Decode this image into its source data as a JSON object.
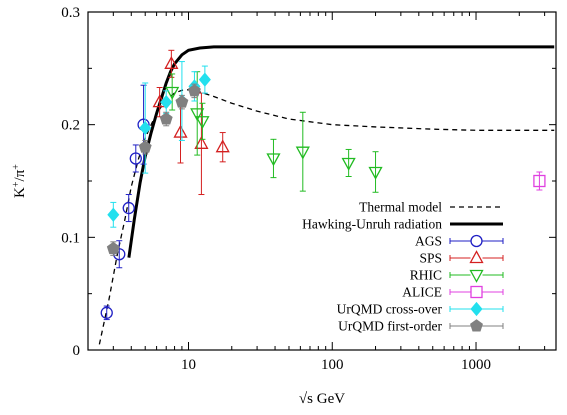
{
  "chart_data": {
    "type": "scatter",
    "xlabel": "√s GeV",
    "ylabel_base": "K",
    "ylabel_sup1": "+",
    "ylabel_mid": "/π",
    "ylabel_sup2": "+",
    "xscale": "log",
    "xlim": [
      2.0,
      3600
    ],
    "ylim": [
      0,
      0.3
    ],
    "xticks": [
      {
        "value": 10,
        "label": "10"
      },
      {
        "value": 100,
        "label": "100"
      },
      {
        "value": 1000,
        "label": "1000"
      }
    ],
    "yticks": [
      {
        "value": 0,
        "label": "0"
      },
      {
        "value": 0.1,
        "label": "0.1"
      },
      {
        "value": 0.2,
        "label": "0.2"
      },
      {
        "value": 0.3,
        "label": "0.3"
      }
    ],
    "grid": false,
    "legend_position": "bottom-right",
    "curves": [
      {
        "name": "Thermal model",
        "style": "dashed",
        "color": "#000000",
        "x": [
          2.4,
          2.8,
          3.2,
          3.6,
          4.0,
          4.5,
          5.0,
          5.5,
          6.0,
          7.0,
          8.0,
          9.0,
          10.0,
          12.0,
          15.0,
          20.0,
          30.0,
          50.0,
          100.0,
          200.0,
          500.0,
          1000.0,
          2000.0,
          3500.0
        ],
        "y": [
          0.005,
          0.045,
          0.085,
          0.115,
          0.145,
          0.17,
          0.188,
          0.2,
          0.21,
          0.222,
          0.228,
          0.2305,
          0.231,
          0.229,
          0.225,
          0.219,
          0.212,
          0.205,
          0.2,
          0.198,
          0.196,
          0.195,
          0.195,
          0.195
        ]
      },
      {
        "name": "Hawking-Unruh radiation",
        "style": "solid-thick",
        "color": "#000000",
        "x": [
          3.85,
          4.2,
          4.6,
          5.0,
          5.5,
          6.0,
          6.5,
          7.0,
          7.5,
          8.0,
          9.0,
          10.0,
          12.0,
          15.0,
          20.0,
          50.0,
          100.0,
          1000.0,
          3500.0
        ],
        "y": [
          0.082,
          0.116,
          0.148,
          0.172,
          0.193,
          0.21,
          0.224,
          0.237,
          0.247,
          0.254,
          0.262,
          0.266,
          0.268,
          0.269,
          0.269,
          0.269,
          0.269,
          0.269,
          0.269
        ]
      }
    ],
    "series": [
      {
        "name": "AGS",
        "color": "#1f1fc4",
        "marker": "circle-open",
        "points": [
          {
            "x": 2.7,
            "y": 0.033,
            "err": 0.006
          },
          {
            "x": 3.3,
            "y": 0.085,
            "err": 0.012
          },
          {
            "x": 3.84,
            "y": 0.126,
            "err": 0.012
          },
          {
            "x": 4.3,
            "y": 0.17,
            "err": 0.012
          },
          {
            "x": 4.87,
            "y": 0.2,
            "err": 0.035
          }
        ]
      },
      {
        "name": "SPS",
        "color": "#d42020",
        "marker": "triangle-up-open",
        "points": [
          {
            "x": 6.3,
            "y": 0.22,
            "err": 0.013
          },
          {
            "x": 7.6,
            "y": 0.254,
            "err": 0.012
          },
          {
            "x": 8.8,
            "y": 0.193,
            "err": 0.027
          },
          {
            "x": 12.3,
            "y": 0.183,
            "err": 0.045
          },
          {
            "x": 17.3,
            "y": 0.18,
            "err": 0.013
          }
        ]
      },
      {
        "name": "RHIC",
        "color": "#22bb22",
        "marker": "triangle-down-open",
        "points": [
          {
            "x": 7.7,
            "y": 0.229,
            "err": 0.016
          },
          {
            "x": 11.5,
            "y": 0.21,
            "err": 0.037
          },
          {
            "x": 12.5,
            "y": 0.203,
            "err": 0.016
          },
          {
            "x": 39,
            "y": 0.17,
            "err": 0.017
          },
          {
            "x": 62.4,
            "y": 0.176,
            "err": 0.035
          },
          {
            "x": 130,
            "y": 0.166,
            "err": 0.012
          },
          {
            "x": 200,
            "y": 0.158,
            "err": 0.018
          }
        ]
      },
      {
        "name": "ALICE",
        "color": "#e040e0",
        "marker": "square-open",
        "points": [
          {
            "x": 2760,
            "y": 0.15,
            "err": 0.008
          }
        ]
      },
      {
        "name": "UrQMD cross-over",
        "color": "#22e0ee",
        "marker": "diamond-filled",
        "points": [
          {
            "x": 3.0,
            "y": 0.12,
            "err": 0.011
          },
          {
            "x": 5.0,
            "y": 0.197,
            "err": 0.04
          },
          {
            "x": 7.0,
            "y": 0.22,
            "err": 0.01
          },
          {
            "x": 9.0,
            "y": 0.221,
            "err": 0.035
          },
          {
            "x": 11.0,
            "y": 0.234,
            "err": 0.013
          },
          {
            "x": 13.0,
            "y": 0.24,
            "err": 0.012
          }
        ]
      },
      {
        "name": "UrQMD first-order",
        "color": "#808080",
        "marker": "pentagon-filled",
        "points": [
          {
            "x": 3.0,
            "y": 0.09,
            "err": 0.006
          },
          {
            "x": 5.0,
            "y": 0.18,
            "err": 0.006
          },
          {
            "x": 7.0,
            "y": 0.205,
            "err": 0.006
          },
          {
            "x": 9.0,
            "y": 0.22,
            "err": 0.006
          },
          {
            "x": 11.0,
            "y": 0.23,
            "err": 0.006
          }
        ]
      }
    ]
  }
}
